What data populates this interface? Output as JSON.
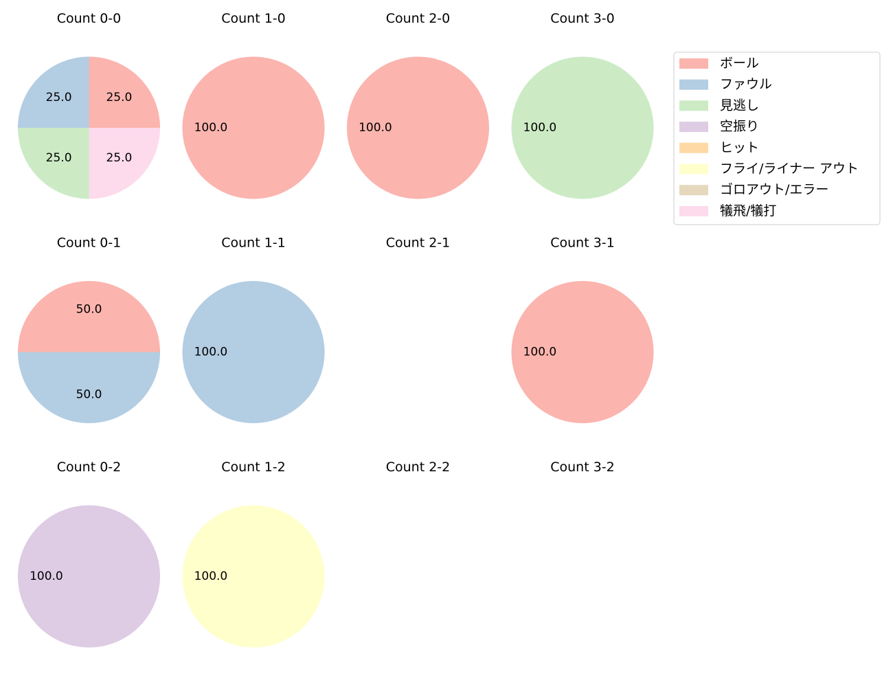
{
  "legend": {
    "position": "top-right",
    "entries": [
      {
        "label": "ボール",
        "color": "#fbb4ae"
      },
      {
        "label": "ファウル",
        "color": "#b3cde3"
      },
      {
        "label": "見逃し",
        "color": "#ccebc5"
      },
      {
        "label": "空振り",
        "color": "#decbe4"
      },
      {
        "label": "ヒット",
        "color": "#fed9a6"
      },
      {
        "label": "フライ/ライナー アウト",
        "color": "#ffffcc"
      },
      {
        "label": "ゴロアウト/エラー",
        "color": "#e5d8bd"
      },
      {
        "label": "犠飛/犠打",
        "color": "#fddaec"
      }
    ]
  },
  "chart_data": [
    {
      "type": "pie",
      "title": "Count 0-0",
      "slices": [
        {
          "category": "ボール",
          "value": 25.0
        },
        {
          "category": "ファウル",
          "value": 25.0
        },
        {
          "category": "見逃し",
          "value": 25.0
        },
        {
          "category": "犠飛/犠打",
          "value": 25.0
        }
      ]
    },
    {
      "type": "pie",
      "title": "Count 1-0",
      "slices": [
        {
          "category": "ボール",
          "value": 100.0
        }
      ]
    },
    {
      "type": "pie",
      "title": "Count 2-0",
      "slices": [
        {
          "category": "ボール",
          "value": 100.0
        }
      ]
    },
    {
      "type": "pie",
      "title": "Count 3-0",
      "slices": [
        {
          "category": "見逃し",
          "value": 100.0
        }
      ]
    },
    {
      "type": "pie",
      "title": "Count 0-1",
      "slices": [
        {
          "category": "ボール",
          "value": 50.0
        },
        {
          "category": "ファウル",
          "value": 50.0
        }
      ]
    },
    {
      "type": "pie",
      "title": "Count 1-1",
      "slices": [
        {
          "category": "ファウル",
          "value": 100.0
        }
      ]
    },
    {
      "type": "pie",
      "title": "Count 2-1",
      "slices": []
    },
    {
      "type": "pie",
      "title": "Count 3-1",
      "slices": [
        {
          "category": "ボール",
          "value": 100.0
        }
      ]
    },
    {
      "type": "pie",
      "title": "Count 0-2",
      "slices": [
        {
          "category": "空振り",
          "value": 100.0
        }
      ]
    },
    {
      "type": "pie",
      "title": "Count 1-2",
      "slices": [
        {
          "category": "フライ/ライナー アウト",
          "value": 100.0
        }
      ]
    },
    {
      "type": "pie",
      "title": "Count 2-2",
      "slices": []
    },
    {
      "type": "pie",
      "title": "Count 3-2",
      "slices": []
    }
  ]
}
